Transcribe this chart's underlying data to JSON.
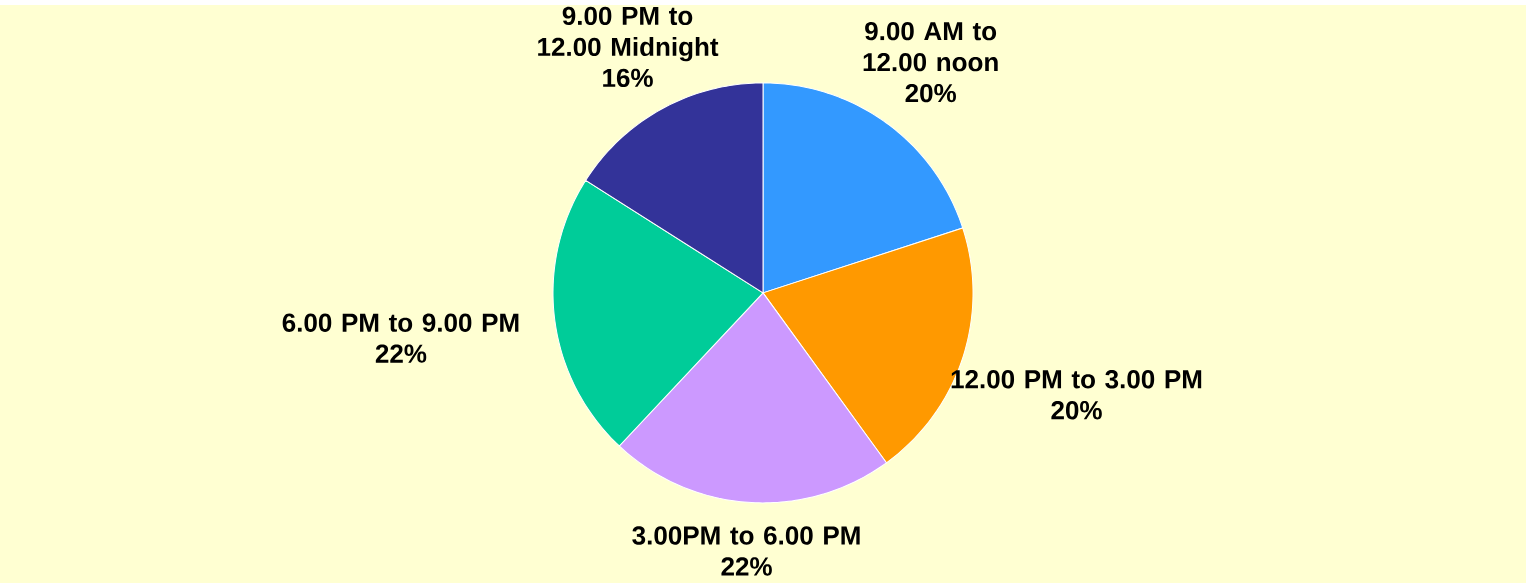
{
  "chart_data": {
    "type": "pie",
    "categories": [
      "9.00 AM to 12.00 noon",
      "12.00 PM to 3.00 PM",
      "3.00PM to 6.00 PM",
      "6.00 PM to 9.00 PM",
      "9.00 PM to 12.00 Midnight"
    ],
    "values": [
      20,
      20,
      22,
      22,
      16
    ],
    "value_labels": [
      "20%",
      "20%",
      "22%",
      "22%",
      "16%"
    ],
    "colors": [
      "#3399ff",
      "#ff9900",
      "#cc99ff",
      "#00cc99",
      "#333399"
    ]
  }
}
